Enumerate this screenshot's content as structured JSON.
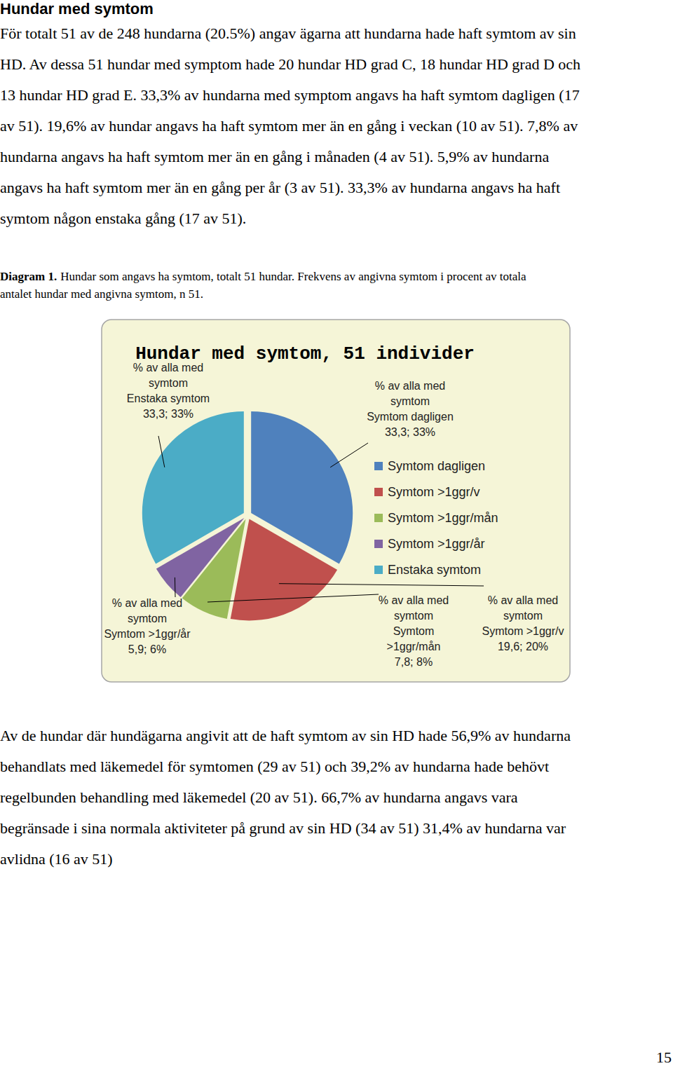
{
  "heading": "Hundar med symtom",
  "paragraph_1": [
    "För totalt 51 av de 248 hundarna (20.5%) angav ägarna att hundarna hade haft symtom av sin",
    "HD. Av dessa 51 hundar med symptom hade 20 hundar HD grad C, 18 hundar HD grad D och",
    "13 hundar HD grad E. 33,3% av hundarna med symptom angavs ha haft symtom dagligen (17",
    "av 51). 19,6% av hundar angavs ha haft symtom mer än en gång i veckan (10 av 51). 7,8% av",
    "hundarna angavs ha haft symtom mer än en gång i månaden (4 av 51). 5,9% av hundarna",
    "angavs ha haft symtom mer än en gång per år (3 av 51). 33,3% av hundarna angavs ha haft",
    "symtom någon enstaka gång (17 av 51)."
  ],
  "caption": {
    "label": "Diagram 1.",
    "lines": [
      "Hundar som angavs ha symtom, totalt 51 hundar. Frekvens av angivna symtom i procent av totala",
      "antalet hundar med angivna symtom, n 51."
    ]
  },
  "chart_data": {
    "type": "pie",
    "title": "Hundar med symtom, 51 individer",
    "categories": [
      "Symtom dagligen",
      "Symtom >1ggr/v",
      "Symtom >1ggr/mån",
      "Symtom >1ggr/år",
      "Enstaka symtom"
    ],
    "series": [
      {
        "name": "% av alla med symtom",
        "values": [
          33.3,
          19.6,
          7.8,
          5.9,
          33.3
        ],
        "value_labels": [
          "33,3; 33%",
          "19,6; 20%",
          "7,8; 8%",
          "5,9; 6%",
          "33,3; 33%"
        ]
      }
    ],
    "colors": [
      "#4f81bd",
      "#c0504d",
      "#9bbb59",
      "#8064a2",
      "#4bacc6"
    ],
    "data_labels": true,
    "legend": "right"
  },
  "paragraph_2": [
    "Av de hundar där hundägarna angivit att de haft symtom av sin HD hade 56,9% av hundarna",
    "behandlats med läkemedel för symtomen (29 av 51) och 39,2% av hundarna hade behövt",
    "regelbunden behandling med läkemedel (20 av 51). 66,7% av hundarna angavs vara",
    "begränsade i sina normala aktiviteter på grund av sin HD (34 av 51) 31,4% av hundarna var",
    "avlidna (16 av 51)"
  ],
  "page_number": 15
}
